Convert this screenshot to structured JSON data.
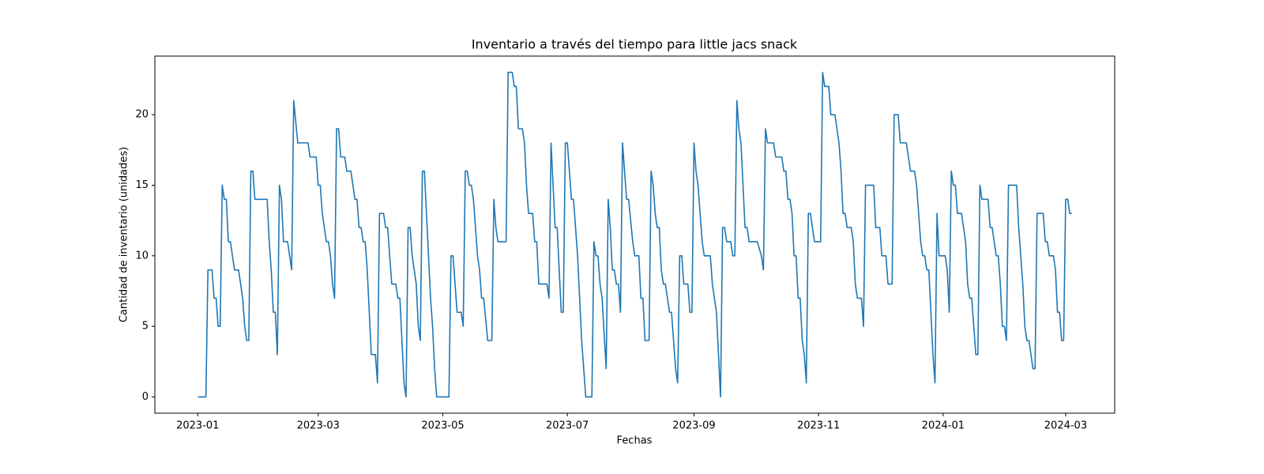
{
  "chart_data": {
    "type": "line",
    "title": "Inventario a través del tiempo para little jacs snack",
    "xlabel": "Fechas",
    "ylabel": "Cantidad de inventario (unidades)",
    "color": "#1f77b4",
    "grid": false,
    "xlim": [
      19337,
      19807
    ],
    "ylim": [
      -1.15,
      24.15
    ],
    "yticks": [
      0,
      5,
      10,
      15,
      20
    ],
    "xticks": [
      {
        "value": 19358,
        "label": "2023-01"
      },
      {
        "value": 19417,
        "label": "2023-03"
      },
      {
        "value": 19478,
        "label": "2023-05"
      },
      {
        "value": 19539,
        "label": "2023-07"
      },
      {
        "value": 19601,
        "label": "2023-09"
      },
      {
        "value": 19662,
        "label": "2023-11"
      },
      {
        "value": 19723,
        "label": "2024-01"
      },
      {
        "value": 19783,
        "label": "2024-03"
      }
    ],
    "x": [
      19358,
      19362,
      19363,
      19365,
      19366,
      19367,
      19368,
      19369,
      19370,
      19371,
      19372,
      19373,
      19374,
      19376,
      19378,
      19380,
      19381,
      19382,
      19383,
      19384,
      19385,
      19386,
      19392,
      19393,
      19394,
      19395,
      19396,
      19397,
      19398,
      19399,
      19400,
      19402,
      19404,
      19405,
      19407,
      19412,
      19413,
      19416,
      19417,
      19418,
      19419,
      19421,
      19422,
      19423,
      19424,
      19425,
      19426,
      19427,
      19428,
      19430,
      19431,
      19433,
      19435,
      19436,
      19437,
      19438,
      19439,
      19440,
      19441,
      19443,
      19445,
      19446,
      19447,
      19449,
      19450,
      19451,
      19452,
      19453,
      19455,
      19456,
      19457,
      19459,
      19460,
      19461,
      19462,
      19463,
      19465,
      19466,
      19467,
      19468,
      19469,
      19472,
      19473,
      19474,
      19475,
      19481,
      19482,
      19483,
      19485,
      19487,
      19488,
      19489,
      19490,
      19491,
      19492,
      19493,
      19495,
      19496,
      19497,
      19498,
      19500,
      19502,
      19503,
      19504,
      19505,
      19509,
      19510,
      19512,
      19513,
      19514,
      19515,
      19517,
      19518,
      19519,
      19520,
      19522,
      19523,
      19524,
      19525,
      19529,
      19530,
      19531,
      19532,
      19533,
      19534,
      19536,
      19537,
      19538,
      19539,
      19541,
      19542,
      19544,
      19546,
      19548,
      19551,
      19552,
      19553,
      19554,
      19555,
      19556,
      19558,
      19559,
      19560,
      19561,
      19562,
      19563,
      19564,
      19565,
      19566,
      19567,
      19568,
      19569,
      19571,
      19572,
      19574,
      19575,
      19576,
      19577,
      19579,
      19580,
      19581,
      19582,
      19583,
      19584,
      19585,
      19586,
      19587,
      19589,
      19590,
      19592,
      19593,
      19594,
      19595,
      19596,
      19598,
      19599,
      19600,
      19601,
      19602,
      19603,
      19605,
      19606,
      19609,
      19610,
      19612,
      19614,
      19615,
      19616,
      19617,
      19619,
      19620,
      19621,
      19622,
      19623,
      19624,
      19626,
      19627,
      19628,
      19632,
      19634,
      19635,
      19636,
      19637,
      19640,
      19641,
      19644,
      19645,
      19646,
      19647,
      19648,
      19649,
      19650,
      19651,
      19652,
      19653,
      19654,
      19655,
      19656,
      19657,
      19658,
      19660,
      19663,
      19664,
      19665,
      19667,
      19668,
      19670,
      19671,
      19672,
      19673,
      19674,
      19675,
      19676,
      19678,
      19679,
      19680,
      19681,
      19683,
      19684,
      19685,
      19689,
      19690,
      19692,
      19693,
      19695,
      19696,
      19698,
      19699,
      19701,
      19702,
      19705,
      19706,
      19707,
      19709,
      19710,
      19712,
      19713,
      19714,
      19715,
      19716,
      19718,
      19719,
      19720,
      19721,
      19724,
      19725,
      19726,
      19727,
      19728,
      19729,
      19730,
      19732,
      19734,
      19735,
      19736,
      19737,
      19739,
      19740,
      19741,
      19742,
      19745,
      19746,
      19747,
      19749,
      19750,
      19751,
      19752,
      19753,
      19754,
      19755,
      19759,
      19760,
      19762,
      19763,
      19764,
      19765,
      19767,
      19768,
      19769,
      19772,
      19773,
      19774,
      19775,
      19777,
      19778,
      19779,
      19780,
      19781,
      19782,
      19783,
      19784,
      19785,
      19786
    ],
    "values": [
      0,
      0,
      9,
      9,
      7,
      7,
      5,
      5,
      15,
      14,
      14,
      11,
      11,
      9,
      9,
      7,
      5,
      4,
      4,
      16,
      16,
      14,
      14,
      11,
      9,
      6,
      6,
      3,
      15,
      14,
      11,
      11,
      9,
      21,
      18,
      18,
      17,
      17,
      15,
      15,
      13,
      11,
      11,
      10,
      8,
      7,
      19,
      19,
      17,
      17,
      16,
      16,
      14,
      14,
      12,
      12,
      11,
      11,
      9,
      3,
      3,
      1,
      13,
      13,
      12,
      12,
      10,
      8,
      8,
      7,
      7,
      1,
      0,
      12,
      12,
      10,
      8,
      5,
      4,
      16,
      16,
      7,
      5,
      2,
      0,
      0,
      10,
      10,
      6,
      6,
      5,
      16,
      16,
      15,
      15,
      14,
      10,
      9,
      7,
      7,
      4,
      4,
      14,
      12,
      11,
      11,
      23,
      23,
      22,
      22,
      19,
      19,
      18,
      15,
      13,
      13,
      11,
      11,
      8,
      8,
      7,
      18,
      15,
      12,
      12,
      6,
      6,
      18,
      18,
      14,
      14,
      10,
      4,
      0,
      0,
      11,
      10,
      10,
      8,
      7,
      2,
      14,
      12,
      9,
      9,
      8,
      8,
      6,
      18,
      16,
      14,
      14,
      11,
      10,
      10,
      7,
      7,
      4,
      4,
      16,
      15,
      13,
      12,
      12,
      9,
      8,
      8,
      6,
      6,
      2,
      1,
      10,
      10,
      8,
      8,
      6,
      6,
      18,
      16,
      15,
      11,
      10,
      10,
      8,
      6,
      0,
      12,
      12,
      11,
      11,
      10,
      10,
      21,
      19,
      18,
      12,
      12,
      11,
      11,
      10,
      9,
      19,
      18,
      18,
      17,
      17,
      16,
      16,
      14,
      14,
      13,
      10,
      10,
      7,
      7,
      4,
      3,
      1,
      13,
      13,
      11,
      11,
      23,
      22,
      22,
      20,
      20,
      19,
      18,
      16,
      13,
      13,
      12,
      12,
      11,
      8,
      7,
      7,
      5,
      15,
      15,
      12,
      12,
      10,
      10,
      8,
      8,
      20,
      20,
      18,
      18,
      17,
      16,
      16,
      15,
      11,
      10,
      10,
      9,
      9,
      3,
      1,
      13,
      10,
      10,
      9,
      6,
      16,
      15,
      15,
      13,
      13,
      11,
      8,
      7,
      7,
      3,
      3,
      15,
      14,
      14,
      12,
      12,
      10,
      10,
      8,
      5,
      5,
      4,
      15,
      15,
      12,
      8,
      5,
      4,
      4,
      2,
      2,
      13,
      13,
      11,
      11,
      10,
      10,
      9,
      6,
      6,
      4,
      4,
      14,
      14,
      13,
      13
    ]
  }
}
